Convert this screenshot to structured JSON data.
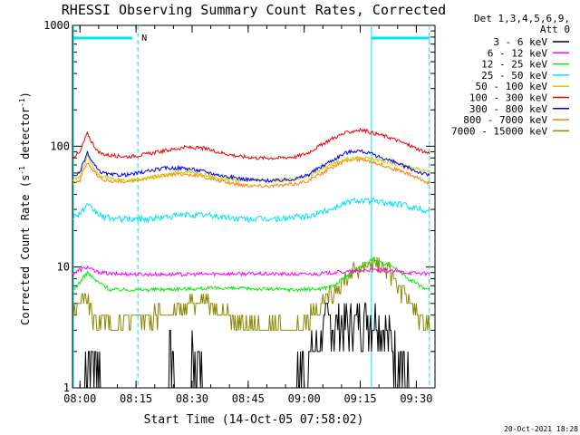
{
  "chart_data": {
    "type": "line",
    "title": "RHESSI Observing Summary Count Rates, Corrected",
    "xlabel": "Start Time (14-Oct-05 07:58:02)",
    "ylabel_main": "Corrected Count Rate (s",
    "ylabel_sup1": "-1",
    "ylabel_mid": " detector",
    "ylabel_sup2": "-1",
    "ylabel_end": ")",
    "yscale": "log",
    "ylim": [
      1,
      1000
    ],
    "xlim_min": [
      0,
      97
    ],
    "x_ticks": [
      {
        "min": 2,
        "label": "08:00"
      },
      {
        "min": 17,
        "label": "08:15"
      },
      {
        "min": 32,
        "label": "08:30"
      },
      {
        "min": 47,
        "label": "08:45"
      },
      {
        "min": 62,
        "label": "09:00"
      },
      {
        "min": 77,
        "label": "09:15"
      },
      {
        "min": 92,
        "label": "09:30"
      }
    ],
    "y_ticks": [
      {
        "value": 1,
        "label": "1"
      },
      {
        "value": 10,
        "label": "10"
      },
      {
        "value": 100,
        "label": "100"
      },
      {
        "value": 1000,
        "label": "1000"
      }
    ],
    "legend_header": [
      "Det 1,3,4,5,6,9,",
      "Att 0"
    ],
    "footer_date": "20-Oct-2021 18:28",
    "flag_label": "N",
    "colors": {
      "background": "#ffffff",
      "axes": "#000000",
      "marker": "#00e5ee"
    },
    "series": [
      {
        "name": "3 - 6 keV",
        "color": "#000000",
        "x": [
          0,
          3,
          4,
          6,
          7,
          8,
          25,
          26,
          27,
          28,
          31,
          32,
          33,
          34,
          35,
          60,
          61,
          62,
          64,
          66,
          68,
          70,
          72,
          74,
          76,
          78,
          80,
          82,
          84,
          86,
          88,
          90,
          95
        ],
        "y": [
          1,
          1,
          1.8,
          1.6,
          1.4,
          1,
          1,
          1.8,
          1.6,
          1,
          1,
          1.8,
          1.5,
          1.8,
          1,
          1,
          1.6,
          1.3,
          1.8,
          2.5,
          3.5,
          3.0,
          3.5,
          3.2,
          3.5,
          3.6,
          3.4,
          3.5,
          2.8,
          2.0,
          1.6,
          1,
          1
        ]
      },
      {
        "name": "6 - 12 keV",
        "color": "#ff00ff",
        "x": [
          0,
          2,
          4,
          6,
          10,
          20,
          30,
          40,
          50,
          60,
          66,
          70,
          75,
          80,
          85,
          90,
          95
        ],
        "y": [
          8.8,
          9.5,
          10,
          9.2,
          8.8,
          8.7,
          8.7,
          8.8,
          8.8,
          8.7,
          8.8,
          9.0,
          9.2,
          9.5,
          9.3,
          9.0,
          8.8
        ]
      },
      {
        "name": "12 - 25 keV",
        "color": "#00ee00",
        "x": [
          0,
          2,
          4,
          6,
          10,
          20,
          30,
          40,
          50,
          60,
          66,
          70,
          72,
          75,
          78,
          80,
          82,
          85,
          88,
          90,
          93,
          95
        ],
        "y": [
          6.2,
          7.5,
          9,
          7.8,
          6.5,
          6.5,
          6.6,
          6.7,
          6.6,
          6.5,
          6.6,
          7,
          7.8,
          9,
          10.5,
          11.5,
          11,
          10.5,
          9,
          8,
          7,
          6.5
        ]
      },
      {
        "name": "25 - 50 keV",
        "color": "#00e5ee",
        "x": [
          0,
          2,
          4,
          6,
          8,
          12,
          16,
          20,
          25,
          30,
          35,
          40,
          45,
          50,
          55,
          60,
          63,
          66,
          70,
          73,
          76,
          80,
          84,
          88,
          92,
          95
        ],
        "y": [
          26,
          28,
          32,
          29,
          26,
          25,
          25,
          25,
          26,
          27,
          27,
          26,
          25,
          25,
          25,
          26,
          26,
          28,
          31,
          34,
          36,
          35,
          34,
          33,
          31,
          29
        ]
      },
      {
        "name": "50 - 100 keV",
        "color": "#cccc00",
        "x": [
          0,
          2,
          4,
          5,
          7,
          10,
          15,
          20,
          25,
          30,
          35,
          40,
          45,
          50,
          55,
          60,
          63,
          66,
          70,
          73,
          76,
          78,
          80,
          84,
          88,
          92,
          95
        ],
        "y": [
          52,
          56,
          82,
          72,
          58,
          54,
          52,
          54,
          58,
          62,
          58,
          54,
          52,
          52,
          52,
          54,
          57,
          63,
          72,
          78,
          80,
          80,
          79,
          74,
          70,
          65,
          62
        ]
      },
      {
        "name": "100 - 300 keV",
        "color": "#ee0000",
        "x": [
          0,
          2,
          4,
          5,
          7,
          10,
          15,
          20,
          25,
          30,
          35,
          40,
          45,
          50,
          55,
          60,
          63,
          66,
          70,
          73,
          76,
          78,
          80,
          82,
          85,
          88,
          92,
          95
        ],
        "y": [
          82,
          88,
          128,
          110,
          88,
          84,
          82,
          86,
          92,
          98,
          96,
          88,
          82,
          80,
          80,
          82,
          88,
          100,
          118,
          128,
          136,
          135,
          130,
          125,
          118,
          108,
          96,
          88
        ]
      },
      {
        "name": "300 - 800 keV",
        "color": "#0000ee",
        "x": [
          0,
          2,
          4,
          5,
          7,
          10,
          15,
          20,
          25,
          30,
          35,
          40,
          45,
          50,
          55,
          60,
          63,
          66,
          70,
          73,
          76,
          78,
          80,
          84,
          88,
          92,
          95
        ],
        "y": [
          57,
          60,
          88,
          76,
          62,
          58,
          58,
          62,
          66,
          66,
          62,
          57,
          54,
          52,
          52,
          54,
          58,
          66,
          78,
          88,
          92,
          90,
          86,
          78,
          70,
          62,
          58
        ]
      },
      {
        "name": "800 - 7000 keV",
        "color": "#ff7f00",
        "x": [
          0,
          2,
          4,
          5,
          7,
          10,
          15,
          20,
          25,
          30,
          35,
          40,
          45,
          50,
          55,
          60,
          63,
          66,
          70,
          73,
          76,
          78,
          80,
          84,
          88,
          92,
          95
        ],
        "y": [
          50,
          52,
          74,
          66,
          55,
          51,
          51,
          54,
          58,
          59,
          56,
          51,
          48,
          47,
          47,
          49,
          52,
          58,
          68,
          76,
          78,
          77,
          75,
          68,
          62,
          55,
          50
        ]
      },
      {
        "name": "7000 - 15000 keV",
        "color": "#888800",
        "x": [
          0,
          2,
          3,
          4,
          5,
          6,
          8,
          12,
          20,
          28,
          32,
          35,
          38,
          40,
          44,
          48,
          52,
          56,
          60,
          62,
          64,
          68,
          72,
          76,
          78,
          80,
          82,
          84,
          86,
          88,
          90,
          92,
          95
        ],
        "y": [
          3.8,
          4.8,
          5.6,
          5.4,
          4.2,
          3.5,
          3.5,
          3.5,
          3.8,
          4.2,
          5,
          5.5,
          5,
          4.2,
          3.6,
          3.3,
          3.2,
          3.0,
          3.1,
          3.6,
          4.2,
          5.5,
          7.5,
          9.5,
          10.5,
          11,
          10.5,
          9.5,
          8.2,
          6.5,
          5.2,
          4.2,
          3.4
        ]
      }
    ]
  }
}
